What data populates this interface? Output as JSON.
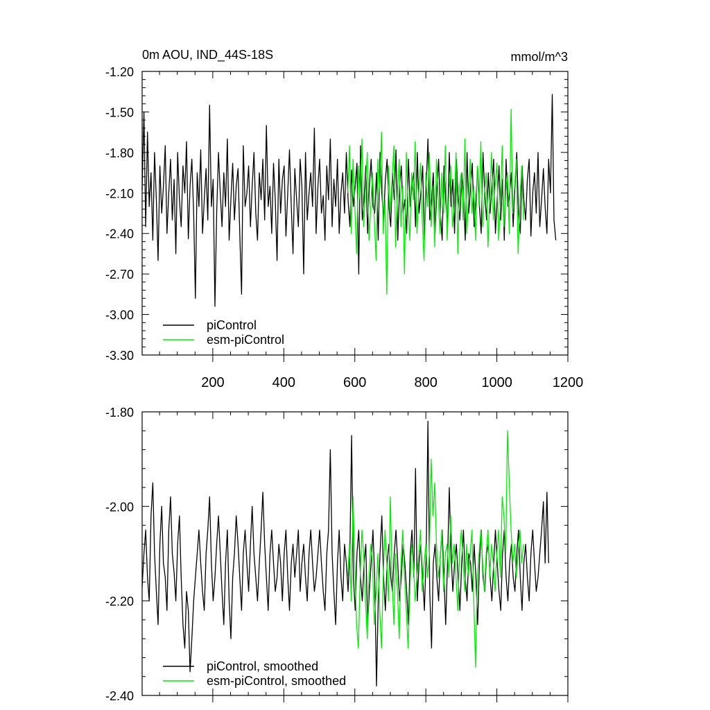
{
  "chart_data": [
    {
      "type": "line",
      "title": "0m AOU, IND_44S-18S",
      "units_label": "mmol/m^3",
      "xlim": [
        1,
        1200
      ],
      "ylim": [
        -3.3,
        -1.2
      ],
      "x_ticks": [
        200,
        400,
        600,
        800,
        1000,
        1200
      ],
      "x_tick_labels": [
        "200",
        "400",
        "600",
        "800",
        "1000",
        "1200"
      ],
      "y_ticks": [
        -1.2,
        -1.5,
        -1.8,
        -2.1,
        -2.4,
        -2.7,
        -3.0,
        -3.3
      ],
      "y_tick_labels": [
        "-1.20",
        "-1.50",
        "-1.80",
        "-2.10",
        "-2.40",
        "-2.70",
        "-3.00",
        "-3.30"
      ],
      "grid": false,
      "legend_position": "bottom-left",
      "series": [
        {
          "name": "piControl",
          "color": "#000000",
          "x_start": 1,
          "x_step": 5,
          "values": [
            -2.08,
            -1.5,
            -2.35,
            -1.65,
            -2.2,
            -1.95,
            -2.45,
            -1.8,
            -2.15,
            -2.6,
            -1.9,
            -2.25,
            -2.05,
            -1.75,
            -2.4,
            -2.1,
            -1.85,
            -2.3,
            -2.0,
            -2.55,
            -1.8,
            -2.15,
            -2.35,
            -1.9,
            -2.1,
            -1.72,
            -2.44,
            -2.05,
            -1.85,
            -2.25,
            -2.88,
            -1.95,
            -2.2,
            -1.78,
            -2.4,
            -2.15,
            -1.92,
            -2.3,
            -1.45,
            -2.2,
            -2.0,
            -2.94,
            -2.25,
            -1.8,
            -2.1,
            -2.35,
            -1.95,
            -2.2,
            -1.7,
            -2.45,
            -2.15,
            -1.88,
            -2.3,
            -2.05,
            -1.92,
            -2.4,
            -2.85,
            -1.75,
            -2.2,
            -2.1,
            -1.9,
            -2.35,
            -2.05,
            -1.8,
            -2.25,
            -2.45,
            -1.95,
            -2.15,
            -1.85,
            -2.3,
            -1.6,
            -2.2,
            -2.05,
            -2.4,
            -1.88,
            -2.15,
            -2.6,
            -1.85,
            -2.25,
            -2.0,
            -1.9,
            -2.42,
            -2.1,
            -1.78,
            -2.2,
            -2.55,
            -1.92,
            -2.15,
            -2.35,
            -1.85,
            -2.05,
            -2.7,
            -1.8,
            -2.3,
            -2.1,
            -1.95,
            -2.2,
            -1.62,
            -2.4,
            -2.05,
            -1.85,
            -2.25,
            -2.12,
            -2.45,
            -1.9,
            -2.15,
            -1.7,
            -2.35,
            -2.0,
            -2.2,
            -1.85,
            -2.4,
            -2.1,
            -1.95,
            -2.25,
            -1.8,
            -2.15,
            -2.35,
            -1.93,
            -2.2,
            -2.05,
            -1.88,
            -2.7,
            -1.75,
            -2.3,
            -2.15,
            -1.9,
            -2.4,
            -2.05,
            -1.85,
            -2.2,
            -2.25,
            -1.95,
            -2.45,
            -1.8,
            -2.1,
            -2.3,
            -2.0,
            -1.85,
            -2.2,
            -2.35,
            -1.95,
            -2.15,
            -1.78,
            -2.45,
            -2.05,
            -1.9,
            -2.25,
            -2.15,
            -2.4,
            -1.85,
            -2.2,
            -2.05,
            -1.95,
            -2.35,
            -1.8,
            -2.25,
            -2.1,
            -1.9,
            -2.45,
            -2.05,
            -1.7,
            -2.3,
            -2.15,
            -1.95,
            -2.4,
            -2.08,
            -1.85,
            -2.25,
            -2.45,
            -1.9,
            -2.15,
            -2.35,
            -1.8,
            -2.2,
            -2.0,
            -2.4,
            -1.85,
            -2.15,
            -2.3,
            -1.95,
            -2.1,
            -2.45,
            -1.8,
            -2.25,
            -2.05,
            -1.88,
            -2.35,
            -2.15,
            -1.92,
            -2.2,
            -2.4,
            -1.8,
            -2.1,
            -2.3,
            -1.95,
            -2.25,
            -2.05,
            -1.85,
            -2.4,
            -2.15,
            -1.9,
            -2.3,
            -2.0,
            -2.45,
            -1.85,
            -2.2,
            -2.1,
            -1.95,
            -2.35,
            -2.05,
            -1.8,
            -2.25,
            -2.4,
            -1.9,
            -2.15,
            -2.3,
            -2.0,
            -1.85,
            -2.42,
            -2.1,
            -1.95,
            -2.25,
            -1.8,
            -2.35,
            -2.15,
            -1.92,
            -2.2,
            -2.4,
            -1.85,
            -2.1,
            -1.37,
            -2.3,
            -2.45
          ]
        },
        {
          "name": "esm-piControl",
          "color": "#00ee00",
          "x_start": 580,
          "x_step": 5,
          "values": [
            -2.1,
            -1.75,
            -2.4,
            -1.85,
            -2.2,
            -2.55,
            -1.9,
            -2.15,
            -1.7,
            -2.35,
            -2.05,
            -1.8,
            -2.45,
            -2.2,
            -1.95,
            -2.3,
            -2.6,
            -1.85,
            -2.1,
            -1.65,
            -2.4,
            -2.15,
            -2.85,
            -1.9,
            -2.25,
            -2.0,
            -1.75,
            -2.5,
            -2.1,
            -1.85,
            -2.35,
            -2.05,
            -2.7,
            -1.8,
            -2.2,
            -2.45,
            -1.95,
            -2.15,
            -1.72,
            -2.4,
            -2.1,
            -1.88,
            -2.3,
            -2.6,
            -1.95,
            -2.2,
            -1.8,
            -2.35,
            -2.05,
            -2.5,
            -1.85,
            -2.15,
            -2.4,
            -1.95,
            -2.25,
            -1.75,
            -2.45,
            -2.1,
            -1.9,
            -2.35,
            -2.2,
            -1.8,
            -2.55,
            -2.05,
            -1.95,
            -2.3,
            -1.7,
            -2.4,
            -2.15,
            -1.85,
            -2.25,
            -2.05,
            -2.45,
            -1.9,
            -2.2,
            -1.72,
            -2.35,
            -2.1,
            -1.95,
            -2.5,
            -2.15,
            -1.8,
            -2.3,
            -2.05,
            -1.88,
            -2.45,
            -2.2,
            -1.75,
            -2.35,
            -2.1,
            -1.95,
            -2.4,
            -1.48,
            -2.25,
            -2.05,
            -1.85,
            -2.55,
            -2.15,
            -1.9,
            -2.3
          ]
        }
      ]
    },
    {
      "type": "line",
      "title": "",
      "xlim": [
        1,
        1200
      ],
      "ylim": [
        -2.4,
        -1.8
      ],
      "y_ticks": [
        -1.8,
        -2.0,
        -2.2,
        -2.4
      ],
      "y_tick_labels": [
        "-1.80",
        "-2.00",
        "-2.20",
        "-2.40"
      ],
      "grid": false,
      "legend_position": "bottom-left",
      "series": [
        {
          "name": "piControl, smoothed",
          "color": "#000000",
          "x_start": 1,
          "x_step": 5,
          "values": [
            -2.17,
            -2.1,
            -2.05,
            -2.15,
            -2.2,
            -2.02,
            -1.95,
            -2.1,
            -2.18,
            -2.25,
            -2.08,
            -2.0,
            -2.12,
            -2.15,
            -2.22,
            -2.05,
            -1.98,
            -2.1,
            -2.14,
            -2.2,
            -2.08,
            -2.02,
            -2.15,
            -2.25,
            -2.3,
            -2.18,
            -2.22,
            -2.35,
            -2.28,
            -2.2,
            -2.15,
            -2.1,
            -2.05,
            -2.12,
            -2.18,
            -2.22,
            -2.1,
            -2.05,
            -1.98,
            -2.12,
            -2.2,
            -2.15,
            -2.08,
            -2.02,
            -2.1,
            -2.18,
            -2.25,
            -2.12,
            -2.05,
            -2.2,
            -2.28,
            -2.15,
            -2.1,
            -2.02,
            -2.08,
            -2.15,
            -2.22,
            -2.1,
            -2.05,
            -2.12,
            -2.18,
            -2.08,
            -2.0,
            -2.1,
            -2.15,
            -2.2,
            -2.12,
            -2.05,
            -1.97,
            -2.08,
            -2.15,
            -2.22,
            -2.1,
            -2.05,
            -2.12,
            -2.18,
            -2.15,
            -2.08,
            -2.12,
            -2.2,
            -2.1,
            -2.05,
            -2.15,
            -2.22,
            -2.12,
            -2.08,
            -2.15,
            -2.1,
            -2.05,
            -2.18,
            -2.12,
            -2.08,
            -2.15,
            -2.2,
            -2.1,
            -2.05,
            -2.12,
            -2.18,
            -2.15,
            -2.1,
            -2.05,
            -2.12,
            -2.18,
            -2.22,
            -2.1,
            -2.05,
            -1.88,
            -2.1,
            -2.18,
            -2.25,
            -2.12,
            -2.05,
            -2.15,
            -2.2,
            -2.08,
            -2.12,
            -2.18,
            -2.1,
            -1.85,
            -2.15,
            -2.22,
            -2.1,
            -2.05,
            -2.15,
            -2.2,
            -2.12,
            -2.08,
            -2.25,
            -2.18,
            -2.12,
            -2.05,
            -2.15,
            -2.38,
            -2.2,
            -2.1,
            -2.02,
            -2.15,
            -2.22,
            -2.12,
            -2.08,
            -2.15,
            -2.18,
            -2.1,
            -2.05,
            -2.12,
            -2.2,
            -2.15,
            -2.08,
            -2.12,
            -2.18,
            -2.25,
            -2.1,
            -2.05,
            -2.15,
            -1.92,
            -2.2,
            -2.12,
            -2.08,
            -2.15,
            -2.22,
            -2.1,
            -1.82,
            -2.18,
            -2.3,
            -2.12,
            -2.08,
            -2.15,
            -2.2,
            -2.1,
            -2.05,
            -2.15,
            -2.25,
            -2.12,
            -1.96,
            -2.1,
            -2.18,
            -2.12,
            -2.08,
            -2.15,
            -2.22,
            -2.12,
            -2.05,
            -2.15,
            -2.2,
            -2.1,
            -2.12,
            -2.18,
            -2.08,
            -2.15,
            -2.25,
            -2.12,
            -2.05,
            -2.15,
            -2.18,
            -2.1,
            -2.08,
            -2.15,
            -2.2,
            -2.12,
            -2.05,
            -2.12,
            -2.18,
            -2.22,
            -2.1,
            -2.05,
            -2.15,
            -2.2,
            -2.12,
            -2.08,
            -2.15,
            -2.18,
            -2.1,
            -2.05,
            -2.15,
            -2.22,
            -2.12,
            -2.08,
            -2.15,
            -2.2,
            -2.1,
            -2.05,
            -2.12,
            -2.18,
            -2.15,
            -2.1,
            -2.05,
            -1.99,
            -2.12,
            -1.97,
            -2.12
          ]
        },
        {
          "name": "esm-piControl, smoothed",
          "color": "#00ee00",
          "x_start": 580,
          "x_step": 5,
          "values": [
            -2.15,
            -2.08,
            -2.2,
            -1.98,
            -2.12,
            -2.25,
            -2.3,
            -2.15,
            -2.05,
            -2.1,
            -2.2,
            -2.28,
            -2.15,
            -2.08,
            -2.12,
            -2.25,
            -2.18,
            -2.1,
            -2.22,
            -2.3,
            -2.15,
            -2.05,
            -2.12,
            -2.2,
            -1.98,
            -2.15,
            -2.25,
            -2.1,
            -2.18,
            -2.28,
            -2.12,
            -2.05,
            -2.15,
            -2.22,
            -2.3,
            -2.18,
            -2.08,
            -2.12,
            -2.2,
            -2.15,
            -2.1,
            -2.05,
            -2.18,
            -2.12,
            -2.08,
            -2.15,
            -2.1,
            -1.9,
            -2.02,
            -1.95,
            -2.08,
            -2.15,
            -2.12,
            -2.05,
            -2.18,
            -2.1,
            -2.08,
            -2.15,
            -2.02,
            -2.12,
            -2.08,
            -2.15,
            -2.22,
            -2.1,
            -2.05,
            -2.12,
            -2.18,
            -2.08,
            -2.15,
            -2.1,
            -2.05,
            -2.2,
            -2.34,
            -2.15,
            -2.1,
            -2.05,
            -2.12,
            -2.18,
            -2.1,
            -2.05,
            -2.15,
            -2.08,
            -2.12,
            -2.18,
            -2.1,
            -2.05,
            -2.15,
            -1.98,
            -2.02,
            -2.1,
            -1.84,
            -1.95,
            -2.05,
            -2.12,
            -2.08,
            -2.15,
            -2.1,
            -2.05,
            -2.12,
            -2.08
          ]
        }
      ]
    }
  ]
}
